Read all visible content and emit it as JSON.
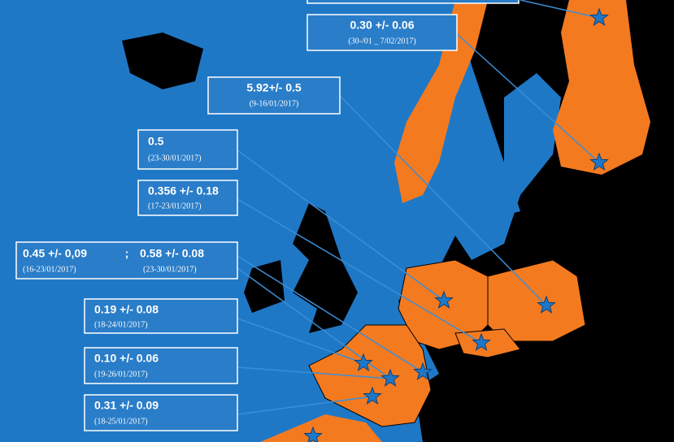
{
  "labels": [
    {
      "value": "0.30 +/- 0.06",
      "period": "(30-/01 _ 7/02/2017)"
    },
    {
      "value": "5.92+/- 0.5",
      "period": "(9-16/01/2017)"
    },
    {
      "value": "0.5",
      "period": "(23-30/01/2017)"
    },
    {
      "value": "0.356 +/- 0.18",
      "period": "(17-23/01/2017)"
    },
    {
      "value": "0.45 +/- 0,09",
      "period": "(16-23/01/2017)",
      "separator": ";",
      "value_2": "0.58 +/- 0.08",
      "period_2": "(23-30/01/2017)"
    },
    {
      "value": "0.19 +/- 0.08",
      "period": "(18-24/01/2017)"
    },
    {
      "value": "0.10 +/- 0.06",
      "period": "(19-26/01/2017)"
    },
    {
      "value": "0.31 +/- 0.09",
      "period": "(18-25/01/2017)"
    }
  ]
}
